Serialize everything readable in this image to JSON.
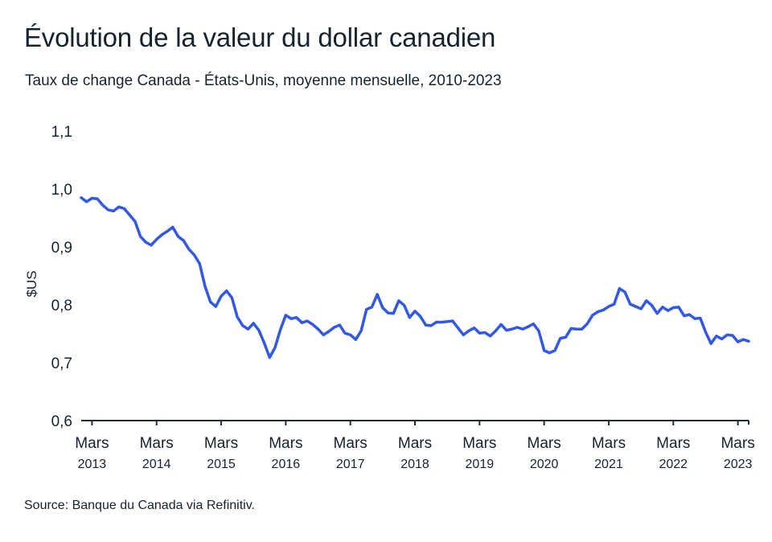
{
  "title": "Évolution de la valeur du dollar canadien",
  "subtitle": "Taux de change Canada - États-Unis, moyenne mensuelle, 2010-2023",
  "source": "Source: Banque du Canada via Refinitiv.",
  "colors": {
    "line": "#3358e6",
    "axis": "#1c2b39",
    "text": "#15232f"
  },
  "chart_data": {
    "type": "line",
    "ylabel": "$US",
    "ylim": [
      0.6,
      1.1
    ],
    "yticks": [
      "0,6",
      "0,7",
      "0,8",
      "0,9",
      "1,0",
      "1,1"
    ],
    "ytick_values": [
      0.6,
      0.7,
      0.8,
      0.9,
      1.0,
      1.1
    ],
    "grid": false,
    "x_start": "2013-01",
    "x_end": "2023-05",
    "xticks": [
      {
        "date": "2013-03",
        "month": "Mars",
        "year": "2013"
      },
      {
        "date": "2014-03",
        "month": "Mars",
        "year": "2014"
      },
      {
        "date": "2015-03",
        "month": "Mars",
        "year": "2015"
      },
      {
        "date": "2016-03",
        "month": "Mars",
        "year": "2016"
      },
      {
        "date": "2017-03",
        "month": "Mars",
        "year": "2017"
      },
      {
        "date": "2018-03",
        "month": "Mars",
        "year": "2018"
      },
      {
        "date": "2019-03",
        "month": "Mars",
        "year": "2019"
      },
      {
        "date": "2020-03",
        "month": "Mars",
        "year": "2020"
      },
      {
        "date": "2021-03",
        "month": "Mars",
        "year": "2021"
      },
      {
        "date": "2022-03",
        "month": "Mars",
        "year": "2022"
      },
      {
        "date": "2023-03",
        "month": "Mars",
        "year": "2023"
      }
    ],
    "series": [
      {
        "dates": [
          "2013-01",
          "2013-02",
          "2013-03",
          "2013-04",
          "2013-05",
          "2013-06",
          "2013-07",
          "2013-08",
          "2013-09",
          "2013-10",
          "2013-11",
          "2013-12",
          "2014-01",
          "2014-02",
          "2014-03",
          "2014-04",
          "2014-05",
          "2014-06",
          "2014-07",
          "2014-08",
          "2014-09",
          "2014-10",
          "2014-11",
          "2014-12",
          "2015-01",
          "2015-02",
          "2015-03",
          "2015-04",
          "2015-05",
          "2015-06",
          "2015-07",
          "2015-08",
          "2015-09",
          "2015-10",
          "2015-11",
          "2015-12",
          "2016-01",
          "2016-02",
          "2016-03",
          "2016-04",
          "2016-05",
          "2016-06",
          "2016-07",
          "2016-08",
          "2016-09",
          "2016-10",
          "2016-11",
          "2016-12",
          "2017-01",
          "2017-02",
          "2017-03",
          "2017-04",
          "2017-05",
          "2017-06",
          "2017-07",
          "2017-08",
          "2017-09",
          "2017-10",
          "2017-11",
          "2017-12",
          "2018-01",
          "2018-02",
          "2018-03",
          "2018-04",
          "2018-05",
          "2018-06",
          "2018-07",
          "2018-08",
          "2018-09",
          "2018-10",
          "2018-11",
          "2018-12",
          "2019-01",
          "2019-02",
          "2019-03",
          "2019-04",
          "2019-05",
          "2019-06",
          "2019-07",
          "2019-08",
          "2019-09",
          "2019-10",
          "2019-11",
          "2019-12",
          "2020-01",
          "2020-02",
          "2020-03",
          "2020-04",
          "2020-05",
          "2020-06",
          "2020-07",
          "2020-08",
          "2020-09",
          "2020-10",
          "2020-11",
          "2020-12",
          "2021-01",
          "2021-02",
          "2021-03",
          "2021-04",
          "2021-05",
          "2021-06",
          "2021-07",
          "2021-08",
          "2021-09",
          "2021-10",
          "2021-11",
          "2021-12",
          "2022-01",
          "2022-02",
          "2022-03",
          "2022-04",
          "2022-05",
          "2022-06",
          "2022-07",
          "2022-08",
          "2022-09",
          "2022-10",
          "2022-11",
          "2022-12",
          "2023-01",
          "2023-02",
          "2023-03",
          "2023-04",
          "2023-05"
        ],
        "values": [
          0.985,
          0.978,
          0.984,
          0.983,
          0.972,
          0.964,
          0.962,
          0.969,
          0.966,
          0.955,
          0.944,
          0.918,
          0.908,
          0.903,
          0.913,
          0.921,
          0.927,
          0.934,
          0.918,
          0.911,
          0.896,
          0.886,
          0.871,
          0.832,
          0.805,
          0.797,
          0.815,
          0.824,
          0.812,
          0.779,
          0.764,
          0.758,
          0.768,
          0.756,
          0.734,
          0.709,
          0.726,
          0.757,
          0.782,
          0.776,
          0.778,
          0.769,
          0.772,
          0.766,
          0.758,
          0.748,
          0.754,
          0.761,
          0.765,
          0.751,
          0.748,
          0.74,
          0.755,
          0.792,
          0.796,
          0.818,
          0.795,
          0.786,
          0.785,
          0.807,
          0.799,
          0.778,
          0.789,
          0.78,
          0.765,
          0.764,
          0.77,
          0.77,
          0.771,
          0.772,
          0.76,
          0.748,
          0.755,
          0.76,
          0.751,
          0.752,
          0.746,
          0.755,
          0.766,
          0.756,
          0.758,
          0.761,
          0.758,
          0.762,
          0.767,
          0.755,
          0.721,
          0.717,
          0.721,
          0.742,
          0.744,
          0.759,
          0.758,
          0.758,
          0.767,
          0.782,
          0.788,
          0.791,
          0.797,
          0.801,
          0.828,
          0.822,
          0.801,
          0.797,
          0.793,
          0.807,
          0.799,
          0.785,
          0.796,
          0.79,
          0.795,
          0.796,
          0.781,
          0.783,
          0.776,
          0.777,
          0.753,
          0.733,
          0.746,
          0.741,
          0.748,
          0.747,
          0.736,
          0.74,
          0.737
        ]
      }
    ]
  }
}
